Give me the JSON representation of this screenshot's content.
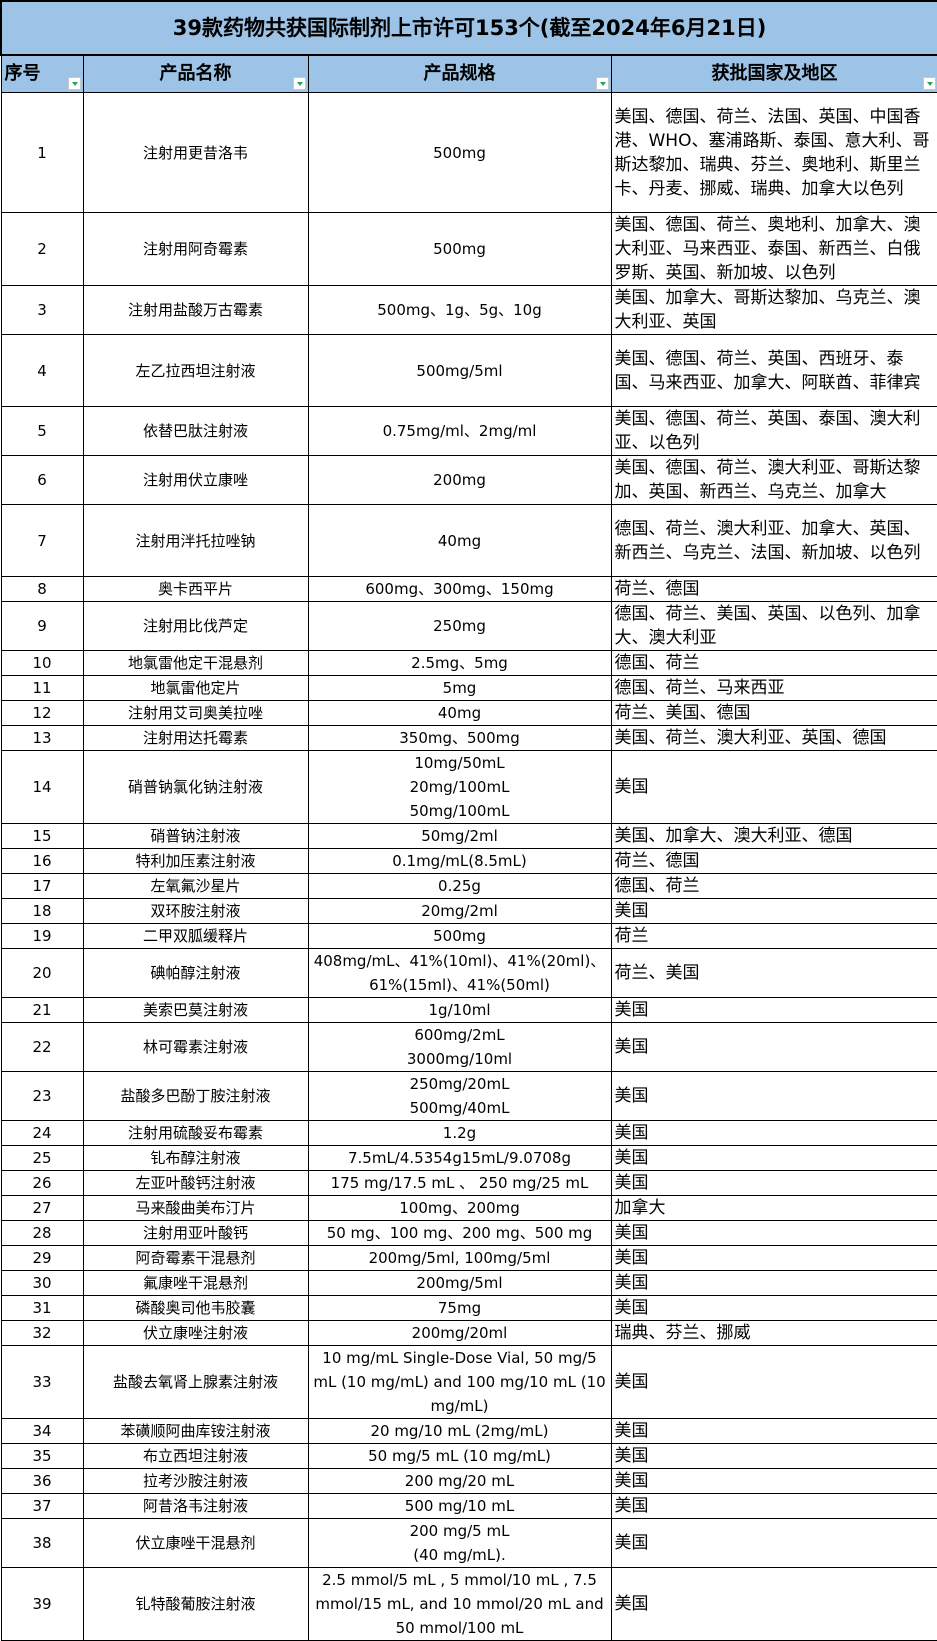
{
  "title": "39款药物共获国际制剂上市许可153个(截至2024年6月21日)",
  "columns": [
    "序号",
    "产品名称",
    "产品规格",
    "获批国家及地区"
  ],
  "rows": [
    {
      "no": "1",
      "name": "注射用更昔洛韦",
      "spec": "500mg",
      "countries": "美国、德国、荷兰、法国、英国、中国香港、WHO、塞浦路斯、泰国、意大利、哥斯达黎加、瑞典、芬兰、奥地利、斯里兰卡、丹麦、挪威、瑞典、加拿大以色列",
      "lines": 5
    },
    {
      "no": "2",
      "name": "注射用阿奇霉素",
      "spec": "500mg",
      "countries": "美国、德国、荷兰、奥地利、加拿大、澳大利亚、马来西亚、泰国、新西兰、白俄罗斯、英国、新加坡、以色列",
      "lines": 3
    },
    {
      "no": "3",
      "name": "注射用盐酸万古霉素",
      "spec": "500mg、1g、5g、10g",
      "countries": "美国、加拿大、哥斯达黎加、乌克兰、澳大利亚、英国",
      "lines": 2
    },
    {
      "no": "4",
      "name": "左乙拉西坦注射液",
      "spec": "500mg/5ml",
      "countries": "美国、德国、荷兰、英国、西班牙、泰国、马来西亚、加拿大、阿联酋、菲律宾",
      "lines": 3
    },
    {
      "no": "5",
      "name": "依替巴肽注射液",
      "spec": "0.75mg/ml、2mg/ml",
      "countries": "美国、德国、荷兰、英国、泰国、澳大利亚、以色列",
      "lines": 2
    },
    {
      "no": "6",
      "name": "注射用伏立康唑",
      "spec": "200mg",
      "countries": "美国、德国、荷兰、澳大利亚、哥斯达黎加、英国、新西兰、乌克兰、加拿大",
      "lines": 2
    },
    {
      "no": "7",
      "name": "注射用泮托拉唑钠",
      "spec": "40mg",
      "countries": "德国、荷兰、澳大利亚、加拿大、英国、新西兰、乌克兰、法国、新加坡、以色列",
      "lines": 3
    },
    {
      "no": "8",
      "name": "奥卡西平片",
      "spec": "600mg、300mg、150mg",
      "countries": "荷兰、德国",
      "lines": 1
    },
    {
      "no": "9",
      "name": "注射用比伐芦定",
      "spec": "250mg",
      "countries": "德国、荷兰、美国、英国、以色列、加拿大、澳大利亚",
      "lines": 2
    },
    {
      "no": "10",
      "name": "地氯雷他定干混悬剂",
      "spec": "2.5mg、5mg",
      "countries": "德国、荷兰",
      "lines": 1
    },
    {
      "no": "11",
      "name": "地氯雷他定片",
      "spec": "5mg",
      "countries": "德国、荷兰、马来西亚",
      "lines": 1
    },
    {
      "no": "12",
      "name": "注射用艾司奥美拉唑",
      "spec": "40mg",
      "countries": "荷兰、美国、德国",
      "lines": 1
    },
    {
      "no": "13",
      "name": "注射用达托霉素",
      "spec": "350mg、500mg",
      "countries": "美国、荷兰、澳大利亚、英国、德国",
      "lines": 1
    },
    {
      "no": "14",
      "name": "硝普钠氯化钠注射液",
      "spec": "10mg/50mL\n20mg/100mL\n50mg/100mL",
      "countries": "美国",
      "lines": 3
    },
    {
      "no": "15",
      "name": "硝普钠注射液",
      "spec": "50mg/2ml",
      "countries": "美国、加拿大、澳大利亚、德国",
      "lines": 1
    },
    {
      "no": "16",
      "name": "特利加压素注射液",
      "spec": "0.1mg/mL(8.5mL)",
      "countries": "荷兰、德国",
      "lines": 1
    },
    {
      "no": "17",
      "name": "左氧氟沙星片",
      "spec": "0.25g",
      "countries": "德国、荷兰",
      "lines": 1
    },
    {
      "no": "18",
      "name": "双环胺注射液",
      "spec": "20mg/2ml",
      "countries": "美国",
      "lines": 1
    },
    {
      "no": "19",
      "name": "二甲双胍缓释片",
      "spec": "500mg",
      "countries": "荷兰",
      "lines": 1
    },
    {
      "no": "20",
      "name": "碘帕醇注射液",
      "spec": "408mg/mL、41%(10ml)、41%(20ml)、\n61%(15ml)、41%(50ml)",
      "countries": "荷兰、美国",
      "lines": 2
    },
    {
      "no": "21",
      "name": "美索巴莫注射液",
      "spec": "1g/10ml",
      "countries": "美国",
      "lines": 1
    },
    {
      "no": "22",
      "name": "林可霉素注射液",
      "spec": "600mg/2mL\n3000mg/10ml",
      "countries": "美国",
      "lines": 2
    },
    {
      "no": "23",
      "name": "盐酸多巴酚丁胺注射液",
      "spec": "250mg/20mL\n500mg/40mL",
      "countries": "美国",
      "lines": 2
    },
    {
      "no": "24",
      "name": "注射用硫酸妥布霉素",
      "spec": "1.2g",
      "countries": "美国",
      "lines": 1
    },
    {
      "no": "25",
      "name": "钆布醇注射液",
      "spec": "7.5mL/4.5354g15mL/9.0708g",
      "countries": "美国",
      "lines": 1
    },
    {
      "no": "26",
      "name": "左亚叶酸钙注射液",
      "spec": "175 mg/17.5 mL 、 250 mg/25 mL",
      "countries": "美国",
      "lines": 1
    },
    {
      "no": "27",
      "name": "马来酸曲美布汀片",
      "spec": "100mg、200mg",
      "countries": "加拿大",
      "lines": 1
    },
    {
      "no": "28",
      "name": "注射用亚叶酸钙",
      "spec": "50 mg、100 mg、200 mg、500 mg",
      "countries": "美国",
      "lines": 1
    },
    {
      "no": "29",
      "name": "阿奇霉素干混悬剂",
      "spec": "200mg/5ml, 100mg/5ml",
      "countries": "美国",
      "lines": 1
    },
    {
      "no": "30",
      "name": "氟康唑干混悬剂",
      "spec": "200mg/5ml",
      "countries": "美国",
      "lines": 1
    },
    {
      "no": "31",
      "name": "磷酸奥司他韦胶囊",
      "spec": "75mg",
      "countries": "美国",
      "lines": 1
    },
    {
      "no": "32",
      "name": "伏立康唑注射液",
      "spec": "200mg/20ml",
      "countries": "瑞典、芬兰、挪威",
      "lines": 1
    },
    {
      "no": "33",
      "name": "盐酸去氧肾上腺素注射液",
      "spec": "10 mg/mL Single-Dose Vial, 50 mg/5 mL (10 mg/mL) and 100 mg/10 mL (10 mg/mL)",
      "countries": "美国",
      "lines": 3
    },
    {
      "no": "34",
      "name": "苯磺顺阿曲库铵注射液",
      "spec": "20 mg/10 mL (2mg/mL)",
      "countries": "美国",
      "lines": 1
    },
    {
      "no": "35",
      "name": "布立西坦注射液",
      "spec": "50 mg/5 mL (10 mg/mL)",
      "countries": "美国",
      "lines": 1
    },
    {
      "no": "36",
      "name": "拉考沙胺注射液",
      "spec": "200 mg/20 mL",
      "countries": "美国",
      "lines": 1
    },
    {
      "no": "37",
      "name": "阿昔洛韦注射液",
      "spec": "500 mg/10 mL",
      "countries": "美国",
      "lines": 1
    },
    {
      "no": "38",
      "name": "伏立康唑干混悬剂",
      "spec": "200 mg/5 mL\n(40 mg/mL).",
      "countries": "美国",
      "lines": 2
    },
    {
      "no": "39",
      "name": "钆特酸葡胺注射液",
      "spec": "2.5 mmol/5 mL , 5 mmol/10 mL , 7.5 mmol/15 mL, and 10 mmol/20 mL and 50 mmol/100 mL",
      "countries": "美国",
      "lines": 3
    }
  ],
  "colors": {
    "header_bg": "#9dc3e6",
    "filter_arrow": "#2e9f5a"
  }
}
